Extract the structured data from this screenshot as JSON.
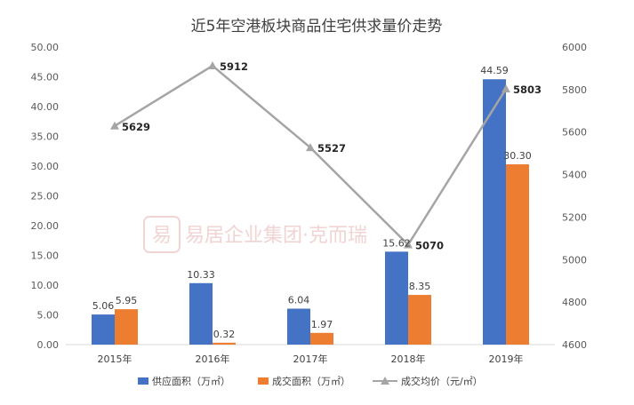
{
  "chart_data": {
    "type": "bar",
    "title": "近5年空港板块商品住宅供求量价走势",
    "categories": [
      "2015年",
      "2016年",
      "2017年",
      "2018年",
      "2019年"
    ],
    "left_axis": {
      "min": 0,
      "max": 50,
      "step": 5,
      "ticks": [
        "0.00",
        "5.00",
        "10.00",
        "15.00",
        "20.00",
        "25.00",
        "30.00",
        "35.00",
        "40.00",
        "45.00",
        "50.00"
      ]
    },
    "right_axis": {
      "min": 4600,
      "max": 6000,
      "step": 200,
      "ticks": [
        "4600",
        "4800",
        "5000",
        "5200",
        "5400",
        "5600",
        "5800",
        "6000"
      ]
    },
    "series": [
      {
        "name": "供应面积（万㎡）",
        "type": "bar",
        "axis": "left",
        "color": "#4472c4",
        "values": [
          5.06,
          10.33,
          6.04,
          15.62,
          44.59
        ],
        "labels": [
          "5.06",
          "10.33",
          "6.04",
          "15.62",
          "44.59"
        ]
      },
      {
        "name": "成交面积（万㎡）",
        "type": "bar",
        "axis": "left",
        "color": "#ed7d31",
        "values": [
          5.95,
          0.32,
          1.97,
          8.35,
          30.3
        ],
        "labels": [
          "5.95",
          "0.32",
          "1.97",
          "8.35",
          "30.30"
        ]
      },
      {
        "name": "成交均价（元/㎡）",
        "type": "line",
        "axis": "right",
        "color": "#a5a5a5",
        "values": [
          5629,
          5912,
          5527,
          5070,
          5803
        ],
        "labels": [
          "5629",
          "5912",
          "5527",
          "5070",
          "5803"
        ]
      }
    ],
    "grid": false,
    "legend": "bottom"
  },
  "watermark": {
    "seal_text": "易",
    "text": "易居企业集团·克而瑞"
  }
}
